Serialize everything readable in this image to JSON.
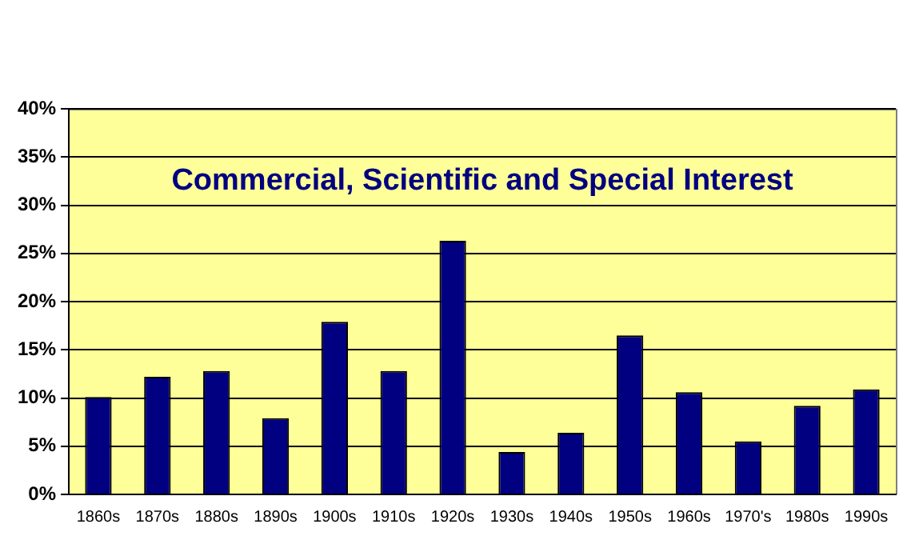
{
  "chart_data": {
    "type": "bar",
    "title": "Commercial, Scientific and Special Interest",
    "categories": [
      "1860s",
      "1870s",
      "1880s",
      "1890s",
      "1900s",
      "1910s",
      "1920s",
      "1930s",
      "1940s",
      "1950s",
      "1960s",
      "1970's",
      "1980s",
      "1990s"
    ],
    "values": [
      10.1,
      12.2,
      12.8,
      7.9,
      17.9,
      12.8,
      26.3,
      4.4,
      6.4,
      16.5,
      10.6,
      5.5,
      9.2,
      10.9
    ],
    "color": "#000080",
    "ylim": [
      0,
      40
    ],
    "yticks": [
      {
        "value": 0,
        "label": "0%"
      },
      {
        "value": 5,
        "label": "5%"
      },
      {
        "value": 10,
        "label": "10%"
      },
      {
        "value": 15,
        "label": "15%"
      },
      {
        "value": 20,
        "label": "20%"
      },
      {
        "value": 25,
        "label": "25%"
      },
      {
        "value": 30,
        "label": "30%"
      },
      {
        "value": 35,
        "label": "35%"
      },
      {
        "value": 40,
        "label": "40%"
      }
    ],
    "grid": "y",
    "legend": false
  }
}
